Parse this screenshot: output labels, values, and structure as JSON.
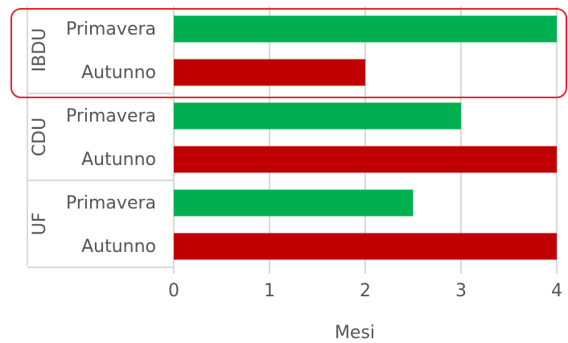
{
  "chart_data": {
    "type": "bar",
    "orientation": "horizontal",
    "groups": [
      {
        "name": "IBDU",
        "highlighted": true,
        "bars": [
          {
            "category": "Primavera",
            "value": 4
          },
          {
            "category": "Autunno",
            "value": 2
          }
        ]
      },
      {
        "name": "CDU",
        "highlighted": false,
        "bars": [
          {
            "category": "Primavera",
            "value": 3
          },
          {
            "category": "Autunno",
            "value": 4
          }
        ]
      },
      {
        "name": "UF",
        "highlighted": false,
        "bars": [
          {
            "category": "Primavera",
            "value": 2.5
          },
          {
            "category": "Autunno",
            "value": 4
          }
        ]
      }
    ],
    "xlabel": "Mesi",
    "xlim": [
      0,
      4
    ],
    "xticks": [
      "0",
      "1",
      "2",
      "3",
      "4"
    ],
    "grid": true
  },
  "colors": {
    "Primavera": "#00b050",
    "Autunno": "#c00000",
    "highlight": "#e8202a",
    "grid": "#d9d9d9",
    "text": "#555555"
  }
}
